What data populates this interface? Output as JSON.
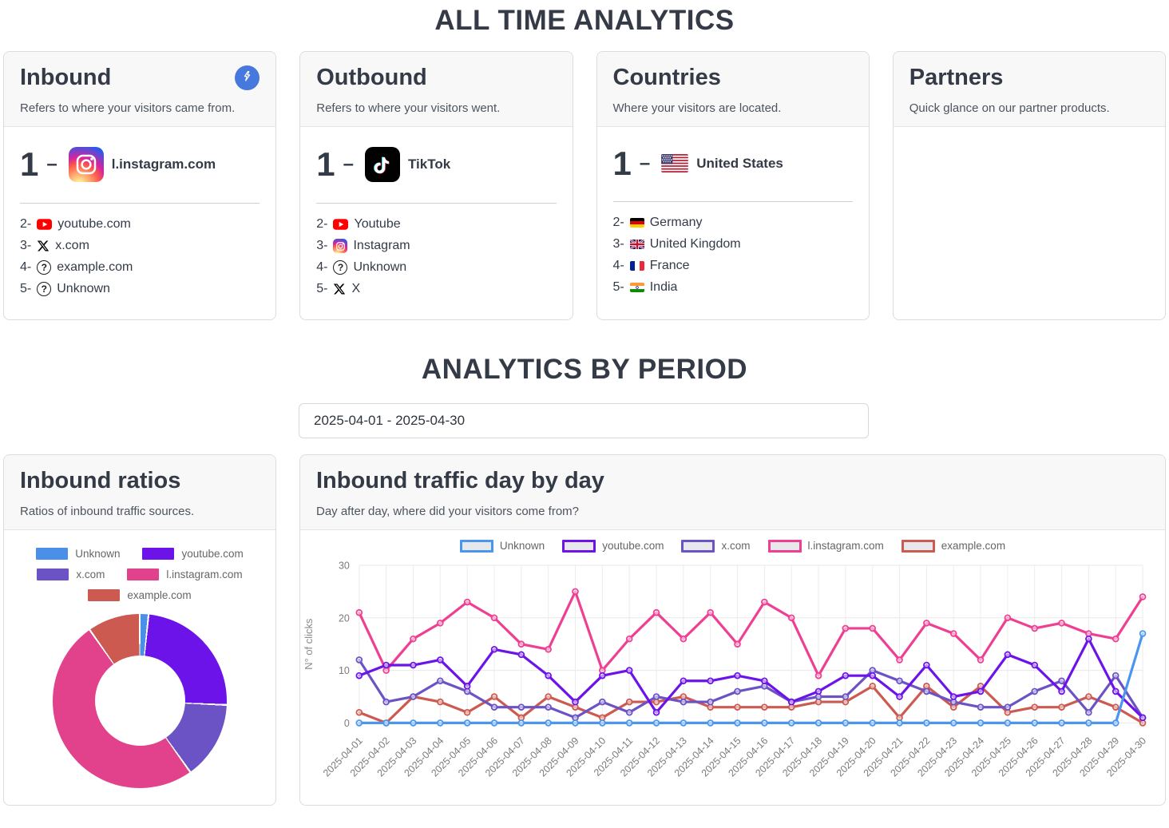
{
  "page": {
    "all_time_title": "ALL TIME ANALYTICS",
    "period_title": "ANALYTICS BY PERIOD"
  },
  "colors": {
    "accent_blue": "#4678dd",
    "heading": "#343a46",
    "card_header_bg": "#f8f8f9"
  },
  "cards": {
    "inbound": {
      "title": "Inbound",
      "subtitle": "Refers to where your visitors came from.",
      "top": {
        "number": "1",
        "separator": "–",
        "label": "l.instagram.com",
        "icon": "instagram-icon"
      },
      "items": [
        {
          "rank": "2-",
          "label": "youtube.com",
          "icon": "youtube-icon"
        },
        {
          "rank": "3-",
          "label": "x.com",
          "icon": "x-icon"
        },
        {
          "rank": "4-",
          "label": "example.com",
          "icon": "question-icon"
        },
        {
          "rank": "5-",
          "label": "Unknown",
          "icon": "question-icon"
        }
      ]
    },
    "outbound": {
      "title": "Outbound",
      "subtitle": "Refers to where your visitors went.",
      "top": {
        "number": "1",
        "separator": "–",
        "label": "TikTok",
        "icon": "tiktok-icon"
      },
      "items": [
        {
          "rank": "2-",
          "label": "Youtube",
          "icon": "youtube-icon"
        },
        {
          "rank": "3-",
          "label": "Instagram",
          "icon": "instagram-icon"
        },
        {
          "rank": "4-",
          "label": "Unknown",
          "icon": "question-icon"
        },
        {
          "rank": "5-",
          "label": "X",
          "icon": "x-icon"
        }
      ]
    },
    "countries": {
      "title": "Countries",
      "subtitle": "Where your visitors are located.",
      "top": {
        "number": "1",
        "separator": "–",
        "label": "United States",
        "icon": "flag-us-icon"
      },
      "items": [
        {
          "rank": "2-",
          "label": "Germany",
          "icon": "flag-germany-icon"
        },
        {
          "rank": "3-",
          "label": "United Kingdom",
          "icon": "flag-uk-icon"
        },
        {
          "rank": "4-",
          "label": "France",
          "icon": "flag-france-icon"
        },
        {
          "rank": "5-",
          "label": "India",
          "icon": "flag-india-icon"
        }
      ]
    },
    "partners": {
      "title": "Partners",
      "subtitle": "Quick glance on our partner products."
    }
  },
  "period": {
    "date_range": "2025-04-01 - 2025-04-30"
  },
  "ratios_card": {
    "title": "Inbound ratios",
    "subtitle": "Ratios of inbound traffic sources."
  },
  "traffic_card": {
    "title": "Inbound traffic day by day",
    "subtitle": "Day after day, where did your visitors come from?"
  },
  "chart_data": [
    {
      "type": "pie",
      "title": "Inbound ratios",
      "labels": [
        "Unknown",
        "youtube.com",
        "x.com",
        "l.instagram.com",
        "example.com"
      ],
      "values": [
        17,
        252,
        151,
        524,
        102
      ],
      "percentages": [
        1.6,
        24.1,
        14.4,
        50.1,
        9.8
      ],
      "colors": [
        "#4a90e8",
        "#6c13e9",
        "#6b52c5",
        "#e2418c",
        "#cc5a50"
      ],
      "hole_ratio": 0.52,
      "start_angle_deg": 0,
      "direction": "clockwise",
      "legend_position": "top"
    },
    {
      "type": "line",
      "title": "Inbound traffic day by day",
      "xlabel": "",
      "ylabel": "N° of clicks",
      "ylim": [
        0,
        30
      ],
      "yticks": [
        0,
        10,
        20,
        30
      ],
      "grid": true,
      "legend_position": "top",
      "x": [
        "2025-04-01",
        "2025-04-02",
        "2025-04-03",
        "2025-04-04",
        "2025-04-05",
        "2025-04-06",
        "2025-04-07",
        "2025-04-08",
        "2025-04-09",
        "2025-04-10",
        "2025-04-11",
        "2025-04-12",
        "2025-04-13",
        "2025-04-14",
        "2025-04-15",
        "2025-04-16",
        "2025-04-17",
        "2025-04-18",
        "2025-04-19",
        "2025-04-20",
        "2025-04-21",
        "2025-04-22",
        "2025-04-23",
        "2025-04-24",
        "2025-04-25",
        "2025-04-26",
        "2025-04-27",
        "2025-04-28",
        "2025-04-29",
        "2025-04-30"
      ],
      "series": [
        {
          "name": "Unknown",
          "color": "#4a96ef",
          "values": [
            0,
            0,
            0,
            0,
            0,
            0,
            0,
            0,
            0,
            0,
            0,
            0,
            0,
            0,
            0,
            0,
            0,
            0,
            0,
            0,
            0,
            0,
            0,
            0,
            0,
            0,
            0,
            0,
            0,
            17
          ]
        },
        {
          "name": "youtube.com",
          "color": "#6c13e9",
          "values": [
            9,
            11,
            11,
            12,
            7,
            14,
            13,
            9,
            4,
            9,
            10,
            2,
            8,
            8,
            9,
            8,
            4,
            6,
            9,
            9,
            5,
            11,
            5,
            6,
            13,
            11,
            6,
            16,
            6,
            1
          ]
        },
        {
          "name": "x.com",
          "color": "#6b52c5",
          "values": [
            12,
            4,
            5,
            8,
            6,
            3,
            3,
            3,
            1,
            4,
            2,
            5,
            4,
            4,
            6,
            7,
            4,
            5,
            5,
            10,
            8,
            6,
            4,
            3,
            3,
            6,
            8,
            2,
            9,
            1
          ]
        },
        {
          "name": "l.instagram.com",
          "color": "#ee3f92",
          "values": [
            21,
            10,
            16,
            19,
            23,
            20,
            15,
            14,
            25,
            10,
            16,
            21,
            16,
            21,
            15,
            23,
            20,
            9,
            18,
            18,
            12,
            19,
            17,
            12,
            20,
            18,
            19,
            17,
            16,
            24
          ]
        },
        {
          "name": "example.com",
          "color": "#cd5a50",
          "values": [
            2,
            0,
            5,
            4,
            2,
            5,
            1,
            5,
            3,
            1,
            4,
            4,
            5,
            3,
            3,
            3,
            3,
            4,
            4,
            7,
            1,
            7,
            3,
            7,
            2,
            3,
            3,
            5,
            3,
            0
          ]
        }
      ]
    }
  ]
}
